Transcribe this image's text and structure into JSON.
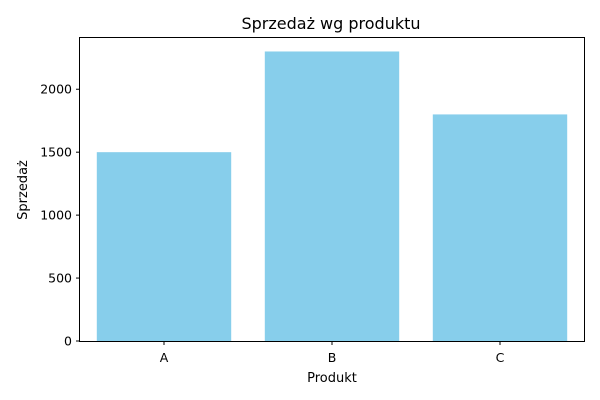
{
  "chart_data": {
    "type": "bar",
    "title": "Sprzedaż wg produktu",
    "xlabel": "Produkt",
    "ylabel": "Sprzedaż",
    "categories": [
      "A",
      "B",
      "C"
    ],
    "values": [
      1500,
      2300,
      1800
    ],
    "ylim": [
      0,
      2415
    ],
    "yticks": [
      0,
      500,
      1000,
      1500,
      2000
    ],
    "bar_color": "#87ceeb",
    "grid": false,
    "legend": "none"
  }
}
